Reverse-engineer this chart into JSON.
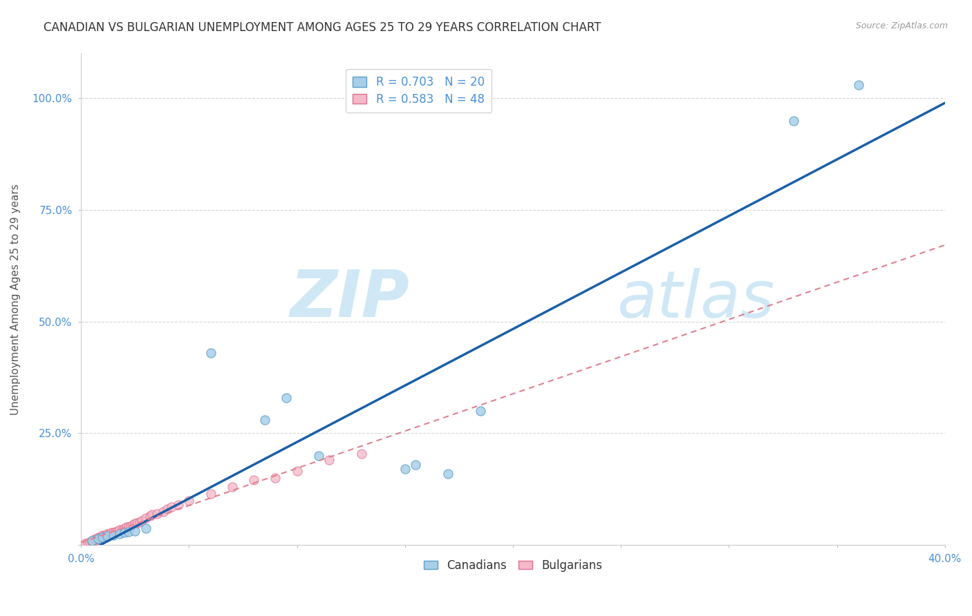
{
  "title": "CANADIAN VS BULGARIAN UNEMPLOYMENT AMONG AGES 25 TO 29 YEARS CORRELATION CHART",
  "source": "Source: ZipAtlas.com",
  "ylabel": "Unemployment Among Ages 25 to 29 years",
  "xlim": [
    0.0,
    0.4
  ],
  "ylim": [
    0.0,
    1.1
  ],
  "xtick_positions": [
    0.0,
    0.05,
    0.1,
    0.15,
    0.2,
    0.25,
    0.3,
    0.35,
    0.4
  ],
  "xticklabels": [
    "0.0%",
    "",
    "",
    "",
    "",
    "",
    "",
    "",
    "40.0%"
  ],
  "ytick_positions": [
    0.0,
    0.25,
    0.5,
    0.75,
    1.0
  ],
  "yticklabels": [
    "",
    "25.0%",
    "50.0%",
    "75.0%",
    "100.0%"
  ],
  "canadian_x": [
    0.005,
    0.008,
    0.01,
    0.012,
    0.015,
    0.018,
    0.02,
    0.022,
    0.025,
    0.03,
    0.06,
    0.085,
    0.095,
    0.11,
    0.15,
    0.155,
    0.17,
    0.185,
    0.33,
    0.36
  ],
  "canadian_y": [
    0.01,
    0.015,
    0.018,
    0.02,
    0.022,
    0.025,
    0.028,
    0.03,
    0.032,
    0.038,
    0.43,
    0.28,
    0.33,
    0.2,
    0.17,
    0.18,
    0.16,
    0.3,
    0.95,
    1.03
  ],
  "bulgarian_x": [
    0.002,
    0.003,
    0.004,
    0.005,
    0.005,
    0.006,
    0.006,
    0.007,
    0.007,
    0.008,
    0.008,
    0.009,
    0.01,
    0.01,
    0.011,
    0.012,
    0.013,
    0.014,
    0.015,
    0.016,
    0.017,
    0.018,
    0.019,
    0.02,
    0.021,
    0.022,
    0.023,
    0.024,
    0.025,
    0.026,
    0.027,
    0.028,
    0.03,
    0.032,
    0.033,
    0.035,
    0.038,
    0.04,
    0.042,
    0.045,
    0.05,
    0.06,
    0.07,
    0.08,
    0.09,
    0.1,
    0.115,
    0.13
  ],
  "bulgarian_y": [
    0.003,
    0.005,
    0.007,
    0.008,
    0.01,
    0.01,
    0.012,
    0.012,
    0.015,
    0.015,
    0.018,
    0.018,
    0.02,
    0.022,
    0.022,
    0.025,
    0.025,
    0.028,
    0.028,
    0.03,
    0.032,
    0.035,
    0.035,
    0.038,
    0.04,
    0.04,
    0.042,
    0.045,
    0.048,
    0.05,
    0.052,
    0.055,
    0.06,
    0.065,
    0.068,
    0.07,
    0.075,
    0.08,
    0.085,
    0.09,
    0.1,
    0.115,
    0.13,
    0.145,
    0.15,
    0.165,
    0.19,
    0.205
  ],
  "canadian_color": "#a8cfe8",
  "bulgarian_color": "#f5b8c8",
  "canadian_edge_color": "#5b9dc9",
  "bulgarian_edge_color": "#e07090",
  "canadian_line_color": "#1a5fa8",
  "bulgarian_line_color": "#e08090",
  "R_canadian": 0.703,
  "N_canadian": 20,
  "R_bulgarian": 0.583,
  "N_bulgarian": 48,
  "watermark_zip": "ZIP",
  "watermark_atlas": "atlas",
  "watermark_color": "#d0e8f5",
  "background_color": "#ffffff",
  "grid_color": "#cccccc",
  "title_fontsize": 12,
  "axis_label_fontsize": 11,
  "tick_fontsize": 11,
  "legend_fontsize": 12,
  "marker_size": 90
}
